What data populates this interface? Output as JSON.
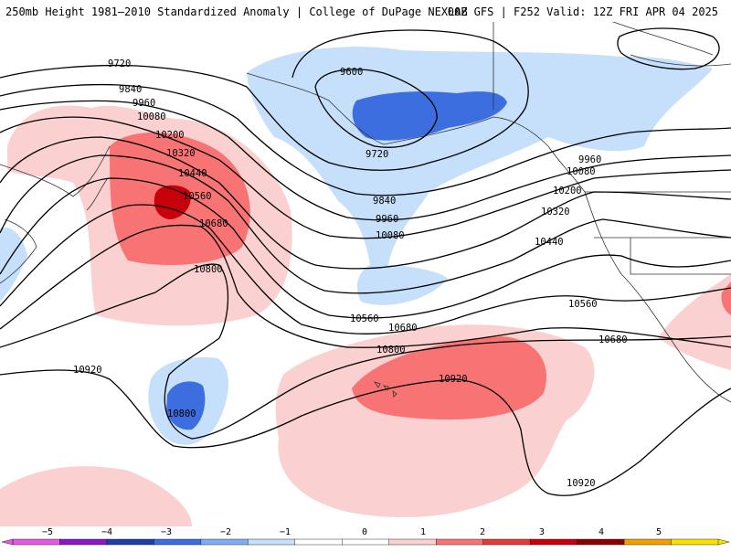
{
  "header": {
    "left": "250mb Height 1981–2010 Standardized Anomaly | College of DuPage NEXLAB",
    "right": "00Z GFS | F252 Valid: 12Z FRI APR 04 2025"
  },
  "colors": {
    "neg_strong": "#3d6ee0",
    "neg_light": "#c6dffb",
    "pos_light": "#fbd0d0",
    "pos_mid": "#f87474",
    "pos_strong": "#c8000c",
    "contour": "#000000",
    "coast": "#333333"
  },
  "contour_labels": [
    "9600",
    "9720",
    "9720",
    "9840",
    "9840",
    "9960",
    "9960",
    "9960",
    "10080",
    "10080",
    "10080",
    "10200",
    "10200",
    "10320",
    "10320",
    "10440",
    "10440",
    "10560",
    "10560",
    "10560",
    "10680",
    "10680",
    "10680",
    "10800",
    "10800",
    "10800",
    "10920",
    "10920",
    "10920"
  ],
  "colorbar": {
    "ticks": [
      "−5",
      "−4",
      "−3",
      "−2",
      "−1",
      "0",
      "1",
      "2",
      "3",
      "4",
      "5"
    ],
    "colors": [
      "#e45ae4",
      "#8a18c9",
      "#1d3fa6",
      "#3d6ee0",
      "#7fadf3",
      "#c6dffb",
      "#ffffff",
      "#ffffff",
      "#fbd0d0",
      "#f87474",
      "#e33a3a",
      "#c8000c",
      "#8a0000",
      "#f0a000",
      "#fce000"
    ]
  }
}
